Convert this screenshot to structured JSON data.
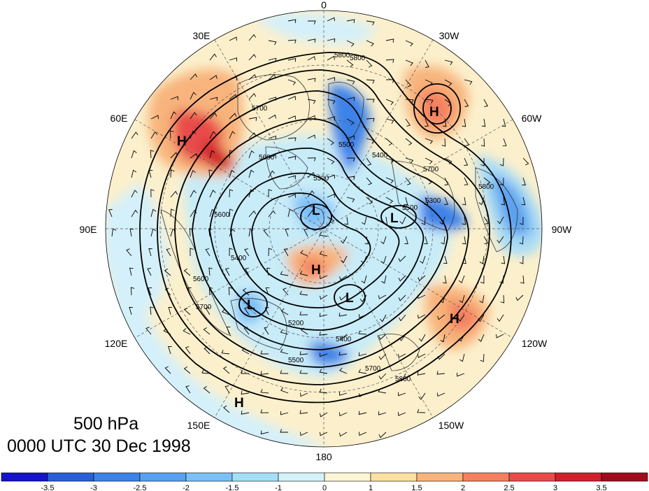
{
  "title": {
    "level": "500 hPa",
    "time": "0000 UTC 30 Dec 1998"
  },
  "longitude_labels": [
    "0",
    "30W",
    "60W",
    "90W",
    "120W",
    "150W",
    "180",
    "150E",
    "120E",
    "90E",
    "60E",
    "30E"
  ],
  "contour_labels": [
    "5800",
    "5800",
    "5700",
    "5600",
    "5500",
    "5400",
    "5300",
    "5200",
    "5400",
    "5500",
    "5600",
    "5700",
    "5800",
    "5700",
    "5600",
    "5500",
    "5400",
    "5300",
    "5800",
    "5700"
  ],
  "centers": [
    {
      "type": "H",
      "label": "H"
    },
    {
      "type": "H",
      "label": "H"
    },
    {
      "type": "H",
      "label": "H"
    },
    {
      "type": "H",
      "label": "H"
    },
    {
      "type": "H",
      "label": "H"
    },
    {
      "type": "L",
      "label": "L"
    },
    {
      "type": "L",
      "label": "L"
    },
    {
      "type": "L",
      "label": "L"
    },
    {
      "type": "L",
      "label": "L"
    }
  ],
  "colorbar": {
    "ticks": [
      "-3.5",
      "-3",
      "-2.5",
      "-2",
      "-1.5",
      "-1",
      "0",
      "1",
      "1.5",
      "2",
      "2.5",
      "3",
      "3.5"
    ],
    "colors": [
      "#1414c8",
      "#2a5ed8",
      "#3c82e8",
      "#5aa0f0",
      "#7cc0f8",
      "#a6def8",
      "#d4f2fa",
      "#fcf6d4",
      "#fce0a4",
      "#f8b47c",
      "#f48060",
      "#e84c48",
      "#d0202c",
      "#a00c1c"
    ]
  },
  "colors": {
    "warm_strong": "#e84c48",
    "warm_mid": "#f8b47c",
    "warm_light": "#fcf0c8",
    "cold_strong": "#3c82e8",
    "cold_mid": "#7cc0f8",
    "cold_light": "#d4f0fa",
    "contour": "#000000"
  }
}
